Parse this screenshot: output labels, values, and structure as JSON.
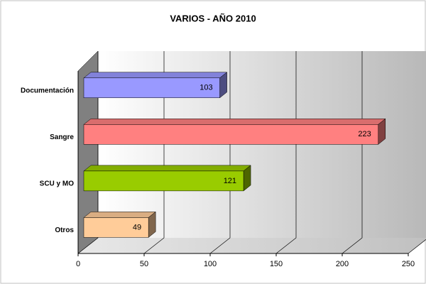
{
  "chart_data": {
    "type": "bar",
    "orientation": "horizontal",
    "title": "VARIOS - AÑO 2010",
    "categories": [
      "Documentación",
      "Sangre",
      "SCU y MO",
      "Otros"
    ],
    "values": [
      103,
      223,
      121,
      49
    ],
    "colors": [
      "#9999ff",
      "#ff8080",
      "#99cc00",
      "#ffcc99"
    ],
    "xlim": [
      0,
      250
    ],
    "xticks": [
      0,
      50,
      100,
      150,
      200,
      250
    ],
    "grid": true
  }
}
